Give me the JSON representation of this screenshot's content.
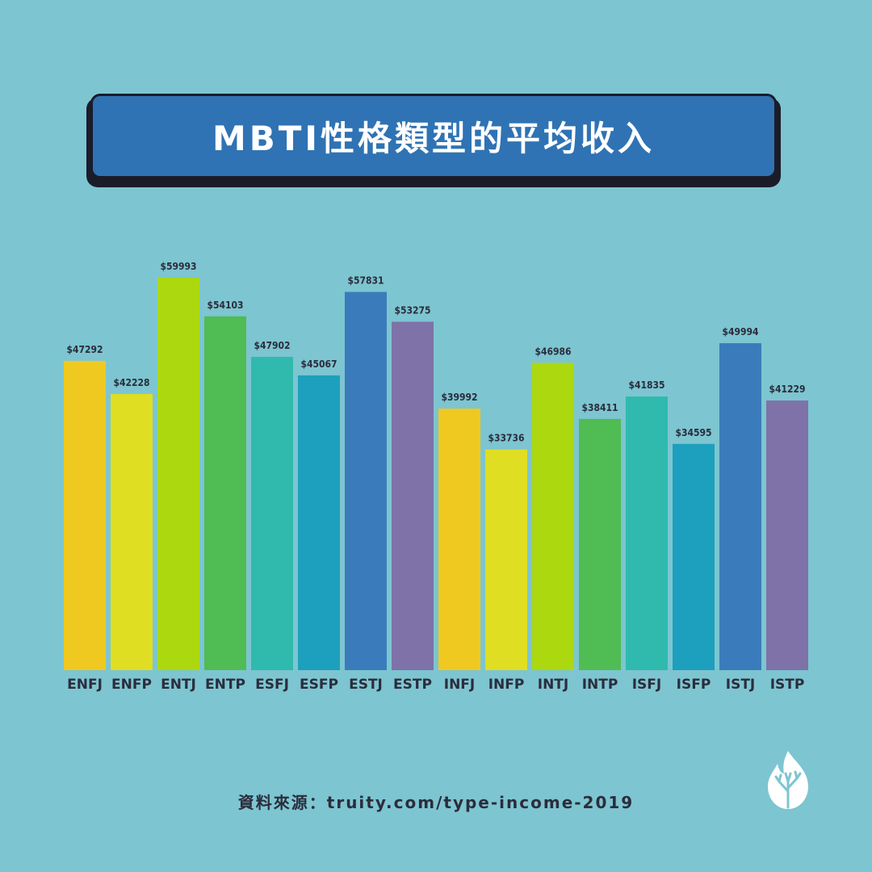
{
  "title": "MBTI性格類型的平均收入",
  "source": "資料來源：truity.com/type-income-2019",
  "logo_icon": "flame-tree-logo",
  "chart_data": {
    "type": "bar",
    "title": "MBTI性格類型的平均收入",
    "categories": [
      "ENFJ",
      "ENFP",
      "ENTJ",
      "ENTP",
      "ESFJ",
      "ESFP",
      "ESTJ",
      "ESTP",
      "INFJ",
      "INFP",
      "INTJ",
      "INTP",
      "ISFJ",
      "ISFP",
      "ISTJ",
      "ISTP"
    ],
    "values": [
      47292,
      42228,
      59993,
      54103,
      47902,
      45067,
      57831,
      53275,
      39992,
      33736,
      46986,
      38411,
      41835,
      34595,
      49994,
      41229
    ],
    "value_labels": [
      "$47292",
      "$42228",
      "$59993",
      "$54103",
      "$47902",
      "$45067",
      "$57831",
      "$53275",
      "$39992",
      "$33736",
      "$46986",
      "$38411",
      "$41835",
      "$34595",
      "$49994",
      "$41229"
    ],
    "colors": [
      "#f0c920",
      "#dfde22",
      "#acd80f",
      "#50bc54",
      "#2fbaad",
      "#1da0bd",
      "#3a7cbb",
      "#7e72a8",
      "#f0c920",
      "#dfde22",
      "#acd80f",
      "#50bc54",
      "#2fbaad",
      "#1da0bd",
      "#3a7cbb",
      "#7e72a8"
    ],
    "xlabel": "",
    "ylabel": "",
    "ylim": [
      0,
      60000
    ],
    "grid": false,
    "legend": "none"
  }
}
